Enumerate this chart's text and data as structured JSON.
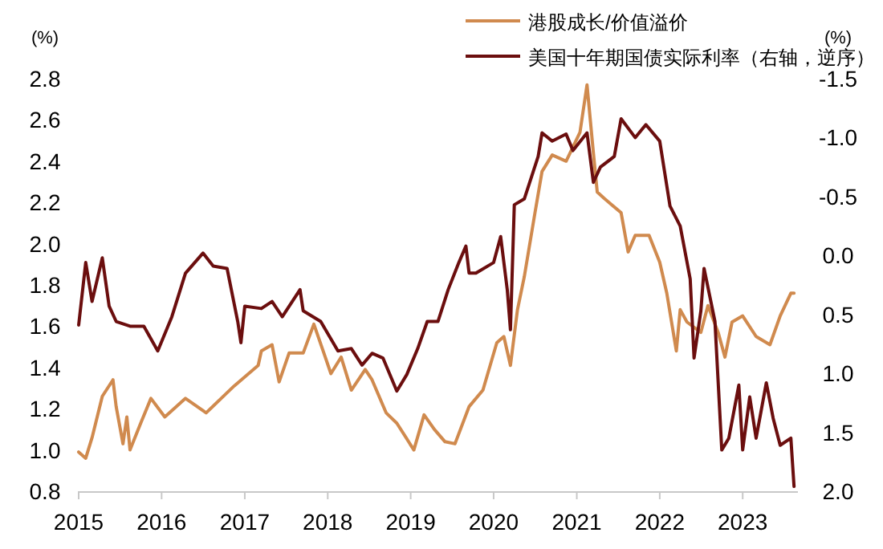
{
  "chart_data": {
    "type": "line",
    "ylabel": "(%)",
    "y2label": "(%)",
    "legend": "top",
    "xlim": [
      "2015-01-01",
      "2023-09-01"
    ],
    "xticks": [
      {
        "value": "2015",
        "label": "2015"
      },
      {
        "value": "2016",
        "label": "2016"
      },
      {
        "value": "2017",
        "label": "2017"
      },
      {
        "value": "2018",
        "label": "2018"
      },
      {
        "value": "2019",
        "label": "2019"
      },
      {
        "value": "2020",
        "label": "2020"
      },
      {
        "value": "2021",
        "label": "2021"
      },
      {
        "value": "2022",
        "label": "2022"
      },
      {
        "value": "2023",
        "label": "2023"
      }
    ],
    "ylim": [
      0.8,
      2.8
    ],
    "yticks": [
      {
        "value": 0.8,
        "label": "0.8"
      },
      {
        "value": 1.0,
        "label": "1.0"
      },
      {
        "value": 1.2,
        "label": "1.2"
      },
      {
        "value": 1.4,
        "label": "1.4"
      },
      {
        "value": 1.6,
        "label": "1.6"
      },
      {
        "value": 1.8,
        "label": "1.8"
      },
      {
        "value": 2.0,
        "label": "2.0"
      },
      {
        "value": 2.2,
        "label": "2.2"
      },
      {
        "value": 2.4,
        "label": "2.4"
      },
      {
        "value": 2.6,
        "label": "2.6"
      },
      {
        "value": 2.8,
        "label": "2.8"
      }
    ],
    "y2lim": [
      2.0,
      -1.5
    ],
    "y2ticks": [
      {
        "value": -1.5,
        "label": "-1.5"
      },
      {
        "value": -1.0,
        "label": "-1.0"
      },
      {
        "value": -0.5,
        "label": "-0.5"
      },
      {
        "value": 0,
        "label": "0.0"
      },
      {
        "value": 0.5,
        "label": "0.5"
      },
      {
        "value": 1.0,
        "label": "1.0"
      },
      {
        "value": 1.5,
        "label": "1.5"
      },
      {
        "value": 2.0,
        "label": "2.0"
      }
    ],
    "series": [
      {
        "name": "港股成长/价值溢价",
        "color": "#d08a4e",
        "type": "line",
        "x": [
          "2015-01-01",
          "2015-02-01",
          "2015-03-01",
          "2015-04-15",
          "2015-06-01",
          "2015-06-15",
          "2015-07-15",
          "2015-08-01",
          "2015-08-15",
          "2015-10-01",
          "2015-11-15",
          "2016-01-15",
          "2016-04-15",
          "2016-07-15",
          "2016-11-15",
          "2017-03-01",
          "2017-03-15",
          "2017-05-01",
          "2017-06-01",
          "2017-07-15",
          "2017-09-15",
          "2017-11-01",
          "2017-12-15",
          "2018-01-15",
          "2018-03-01",
          "2018-04-15",
          "2018-06-15",
          "2018-07-15",
          "2018-09-15",
          "2018-11-01",
          "2019-01-15",
          "2019-03-01",
          "2019-04-15",
          "2019-06-01",
          "2019-07-15",
          "2019-09-15",
          "2019-11-15",
          "2020-01-15",
          "2020-02-15",
          "2020-03-15",
          "2020-04-15",
          "2020-05-15",
          "2020-07-01",
          "2020-08-01",
          "2020-09-15",
          "2020-11-15",
          "2021-01-15",
          "2021-02-15",
          "2021-03-15",
          "2021-04-01",
          "2021-05-01",
          "2021-07-15",
          "2021-08-15",
          "2021-09-15",
          "2021-11-15",
          "2022-01-01",
          "2022-02-01",
          "2022-03-15",
          "2022-04-01",
          "2022-05-01",
          "2022-07-01",
          "2022-08-01",
          "2022-09-15",
          "2022-10-15",
          "2022-11-15",
          "2023-01-01",
          "2023-03-01",
          "2023-05-01",
          "2023-06-15",
          "2023-08-01",
          "2023-08-15"
        ],
        "values": [
          0.99,
          0.96,
          1.06,
          1.26,
          1.34,
          1.21,
          1.03,
          1.16,
          1.0,
          1.13,
          1.25,
          1.16,
          1.25,
          1.18,
          1.31,
          1.41,
          1.48,
          1.51,
          1.33,
          1.47,
          1.47,
          1.61,
          1.47,
          1.37,
          1.45,
          1.29,
          1.39,
          1.34,
          1.18,
          1.13,
          1.0,
          1.17,
          1.1,
          1.04,
          1.03,
          1.21,
          1.29,
          1.52,
          1.55,
          1.41,
          1.68,
          1.84,
          2.15,
          2.35,
          2.43,
          2.4,
          2.54,
          2.77,
          2.44,
          2.25,
          2.22,
          2.15,
          1.96,
          2.04,
          2.04,
          1.91,
          1.76,
          1.48,
          1.68,
          1.62,
          1.57,
          1.7,
          1.57,
          1.45,
          1.62,
          1.65,
          1.55,
          1.51,
          1.65,
          1.76,
          1.76
        ]
      },
      {
        "name": "美国十年期国债实际利率（右轴，逆序）",
        "color": "#6b0e0e",
        "type": "line",
        "axis": "y2",
        "x": [
          "2015-01-01",
          "2015-02-01",
          "2015-03-01",
          "2015-04-15",
          "2015-05-15",
          "2015-06-15",
          "2015-08-15",
          "2015-10-15",
          "2015-12-15",
          "2016-02-15",
          "2016-04-15",
          "2016-07-01",
          "2016-08-15",
          "2016-10-15",
          "2016-12-01",
          "2016-12-15",
          "2017-01-01",
          "2017-03-15",
          "2017-05-01",
          "2017-06-15",
          "2017-09-01",
          "2017-09-15",
          "2017-12-01",
          "2018-02-15",
          "2018-04-15",
          "2018-06-01",
          "2018-07-15",
          "2018-09-01",
          "2018-11-01",
          "2018-12-15",
          "2019-02-01",
          "2019-03-15",
          "2019-05-01",
          "2019-06-15",
          "2019-08-01",
          "2019-09-01",
          "2019-09-15",
          "2019-10-15",
          "2020-01-01",
          "2020-02-01",
          "2020-03-01",
          "2020-03-15",
          "2020-04-01",
          "2020-05-15",
          "2020-07-15",
          "2020-08-01",
          "2020-09-15",
          "2020-11-15",
          "2020-12-15",
          "2021-02-15",
          "2021-03-15",
          "2021-04-15",
          "2021-06-15",
          "2021-07-15",
          "2021-09-15",
          "2021-11-01",
          "2022-01-01",
          "2022-02-15",
          "2022-04-01",
          "2022-05-15",
          "2022-06-01",
          "2022-07-01",
          "2022-07-15",
          "2022-09-01",
          "2022-10-01",
          "2022-11-01",
          "2022-12-15",
          "2023-01-01",
          "2023-02-01",
          "2023-03-01",
          "2023-04-15",
          "2023-05-15",
          "2023-06-15",
          "2023-08-01",
          "2023-08-15"
        ],
        "values": [
          0.59,
          0.06,
          0.39,
          0.02,
          0.43,
          0.56,
          0.6,
          0.6,
          0.81,
          0.52,
          0.15,
          -0.02,
          0.09,
          0.11,
          0.56,
          0.74,
          0.43,
          0.45,
          0.39,
          0.52,
          0.29,
          0.47,
          0.56,
          0.81,
          0.79,
          0.93,
          0.83,
          0.87,
          1.15,
          1.01,
          0.79,
          0.56,
          0.56,
          0.29,
          0.06,
          -0.08,
          0.15,
          0.15,
          0.06,
          -0.16,
          0.29,
          0.63,
          -0.43,
          -0.48,
          -0.84,
          -1.04,
          -0.97,
          -1.03,
          -0.89,
          -1.04,
          -0.62,
          -0.75,
          -0.84,
          -1.16,
          -1.0,
          -1.11,
          -0.97,
          -0.42,
          -0.25,
          0.2,
          0.87,
          0.47,
          0.11,
          0.56,
          1.65,
          1.55,
          1.1,
          1.65,
          1.2,
          1.55,
          1.08,
          1.38,
          1.61,
          1.55,
          1.96
        ]
      }
    ]
  }
}
